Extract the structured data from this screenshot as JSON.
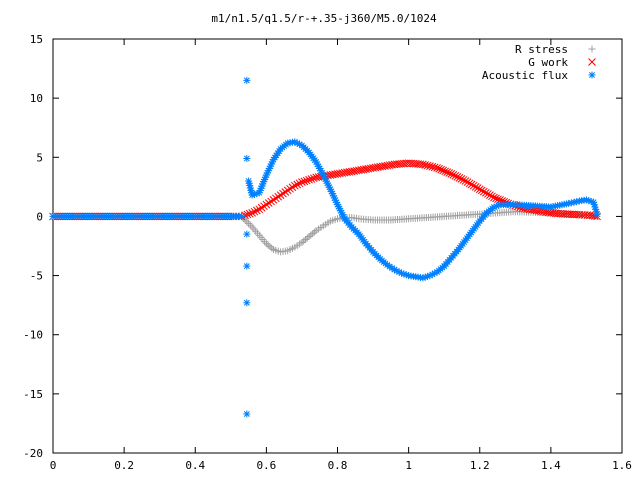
{
  "chart_data": {
    "type": "scatter",
    "title": "m1/n1.5/q1.5/r-+.35-j360/M5.0/1024",
    "xlabel": "",
    "ylabel": "",
    "xlim": [
      0,
      1.6
    ],
    "ylim": [
      -20,
      15
    ],
    "x_ticks": [
      "0",
      "0.2",
      "0.4",
      "0.6",
      "0.8",
      "1",
      "1.2",
      "1.4",
      "1.6"
    ],
    "y_ticks": [
      "15",
      "10",
      "5",
      "0",
      "-5",
      "-10",
      "-15",
      "-20"
    ],
    "grid": false,
    "legend_position": "top-right",
    "series": [
      {
        "name": "R stress",
        "marker": "plus",
        "color": "#a0a0a0",
        "x": [
          0.0,
          0.1,
          0.2,
          0.3,
          0.4,
          0.5,
          0.53,
          0.54,
          0.56,
          0.58,
          0.6,
          0.62,
          0.64,
          0.66,
          0.68,
          0.7,
          0.72,
          0.74,
          0.76,
          0.78,
          0.8,
          0.82,
          0.84,
          0.86,
          0.9,
          0.95,
          1.0,
          1.05,
          1.1,
          1.15,
          1.2,
          1.25,
          1.3,
          1.35,
          1.4,
          1.45,
          1.5,
          1.53
        ],
        "y": [
          0,
          0,
          0,
          0,
          0,
          0,
          0,
          -0.3,
          -0.9,
          -1.6,
          -2.3,
          -2.8,
          -3.0,
          -2.9,
          -2.6,
          -2.2,
          -1.7,
          -1.2,
          -0.8,
          -0.4,
          -0.2,
          -0.1,
          -0.1,
          -0.2,
          -0.3,
          -0.3,
          -0.2,
          -0.1,
          0.0,
          0.1,
          0.2,
          0.3,
          0.4,
          0.35,
          0.3,
          0.2,
          0.1,
          0.0
        ]
      },
      {
        "name": "G work",
        "marker": "cross",
        "color": "#ff0000",
        "x": [
          0.0,
          0.1,
          0.2,
          0.3,
          0.4,
          0.5,
          0.53,
          0.54,
          0.56,
          0.58,
          0.6,
          0.62,
          0.64,
          0.66,
          0.68,
          0.7,
          0.72,
          0.74,
          0.76,
          0.78,
          0.8,
          0.84,
          0.88,
          0.92,
          0.96,
          1.0,
          1.04,
          1.08,
          1.12,
          1.16,
          1.2,
          1.24,
          1.28,
          1.32,
          1.36,
          1.4,
          1.44,
          1.48,
          1.51,
          1.53
        ],
        "y": [
          0,
          0,
          0,
          0,
          0,
          0,
          0,
          0.1,
          0.3,
          0.6,
          1.0,
          1.4,
          1.8,
          2.2,
          2.6,
          2.9,
          3.1,
          3.3,
          3.4,
          3.5,
          3.6,
          3.8,
          4.0,
          4.2,
          4.4,
          4.5,
          4.4,
          4.1,
          3.6,
          3.0,
          2.3,
          1.6,
          1.1,
          0.7,
          0.5,
          0.3,
          0.2,
          0.15,
          0.1,
          0.0
        ]
      },
      {
        "name": "Acoustic flux",
        "marker": "star",
        "color": "#0080ff",
        "x": [
          0.0,
          0.1,
          0.2,
          0.3,
          0.4,
          0.5,
          0.53,
          0.545,
          0.545,
          0.545,
          0.545,
          0.545,
          0.545,
          0.55,
          0.56,
          0.58,
          0.6,
          0.62,
          0.64,
          0.66,
          0.68,
          0.7,
          0.72,
          0.74,
          0.76,
          0.78,
          0.8,
          0.82,
          0.84,
          0.86,
          0.88,
          0.9,
          0.92,
          0.94,
          0.96,
          0.98,
          1.0,
          1.02,
          1.04,
          1.06,
          1.08,
          1.1,
          1.12,
          1.14,
          1.16,
          1.18,
          1.2,
          1.22,
          1.24,
          1.26,
          1.28,
          1.3,
          1.35,
          1.4,
          1.45,
          1.48,
          1.5,
          1.52,
          1.53
        ],
        "y": [
          0,
          0,
          0,
          0,
          0,
          0,
          0,
          11.5,
          4.9,
          -4.2,
          -7.3,
          -16.7,
          -1.5,
          3.0,
          1.8,
          2.0,
          3.5,
          4.8,
          5.7,
          6.2,
          6.3,
          6.0,
          5.4,
          4.6,
          3.5,
          2.3,
          1.0,
          -0.2,
          -0.9,
          -1.5,
          -2.3,
          -3.0,
          -3.6,
          -4.1,
          -4.5,
          -4.8,
          -5.0,
          -5.1,
          -5.2,
          -5.0,
          -4.7,
          -4.2,
          -3.5,
          -2.8,
          -2.0,
          -1.2,
          -0.4,
          0.3,
          0.8,
          1.0,
          1.0,
          1.0,
          0.9,
          0.8,
          1.1,
          1.3,
          1.4,
          1.2,
          0.2
        ]
      }
    ]
  }
}
